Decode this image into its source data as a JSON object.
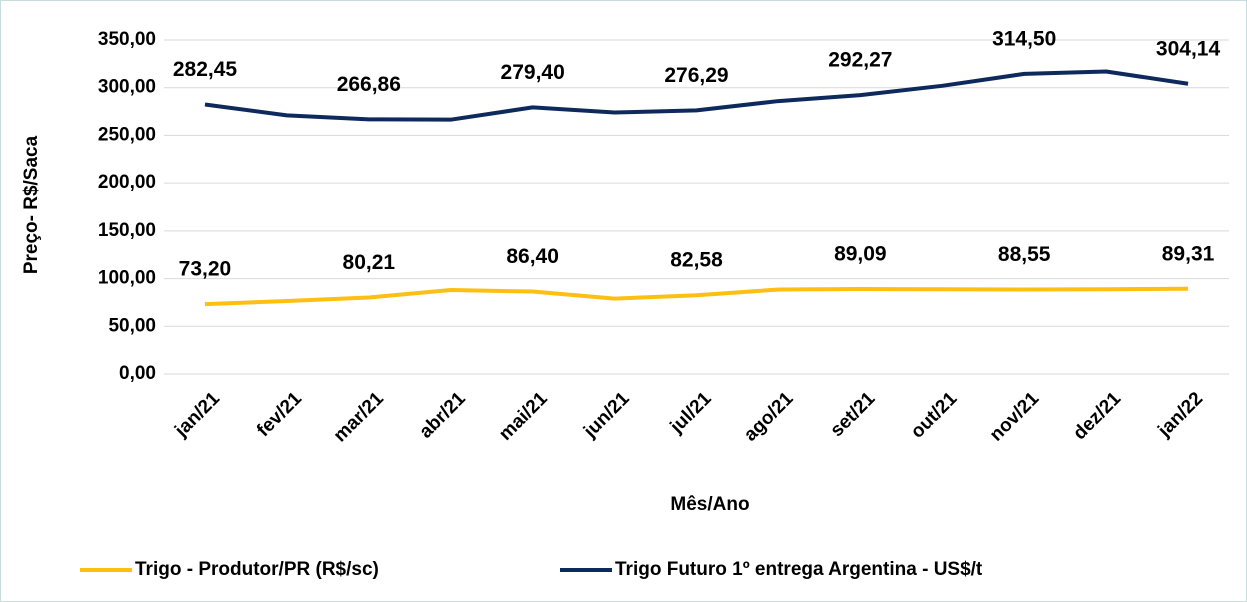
{
  "chart_data": {
    "type": "line",
    "x_label": "Mês/Ano",
    "y_label": "Preço- R$/Saca",
    "categories": [
      "jan/21",
      "fev/21",
      "mar/21",
      "abr/21",
      "mai/21",
      "jun/21",
      "jul/21",
      "ago/21",
      "set/21",
      "out/21",
      "nov/21",
      "dez/21",
      "jan/22"
    ],
    "series": [
      {
        "name": "Trigo - Produtor/PR (R$/sc)",
        "color": "#fcbf12",
        "values": [
          73.2,
          76.5,
          80.21,
          88.0,
          86.4,
          79.0,
          82.58,
          88.5,
          89.09,
          88.8,
          88.55,
          88.8,
          89.31
        ],
        "value_labels": [
          "73,20",
          null,
          "80,21",
          null,
          "86,40",
          null,
          "82,58",
          null,
          "89,09",
          null,
          "88,55",
          null,
          "89,31"
        ]
      },
      {
        "name": "Trigo Futuro 1º entrega Argentina - US$/t",
        "color": "#0e2a5c",
        "values": [
          282.45,
          271.0,
          266.86,
          266.5,
          279.4,
          274.0,
          276.29,
          286.0,
          292.27,
          302.0,
          314.5,
          317.0,
          304.14
        ],
        "value_labels": [
          "282,45",
          null,
          "266,86",
          null,
          "279,40",
          null,
          "276,29",
          null,
          "292,27",
          null,
          "314,50",
          null,
          "304,14"
        ]
      }
    ],
    "ylim": [
      0,
      350
    ],
    "yticks": [
      {
        "value": 0,
        "label": "0,00"
      },
      {
        "value": 50,
        "label": "50,00"
      },
      {
        "value": 100,
        "label": "100,00"
      },
      {
        "value": 150,
        "label": "150,00"
      },
      {
        "value": 200,
        "label": "200,00"
      },
      {
        "value": 250,
        "label": "250,00"
      },
      {
        "value": 300,
        "label": "300,00"
      },
      {
        "value": 350,
        "label": "350,00"
      }
    ],
    "grid": true,
    "legend": "bottom"
  }
}
